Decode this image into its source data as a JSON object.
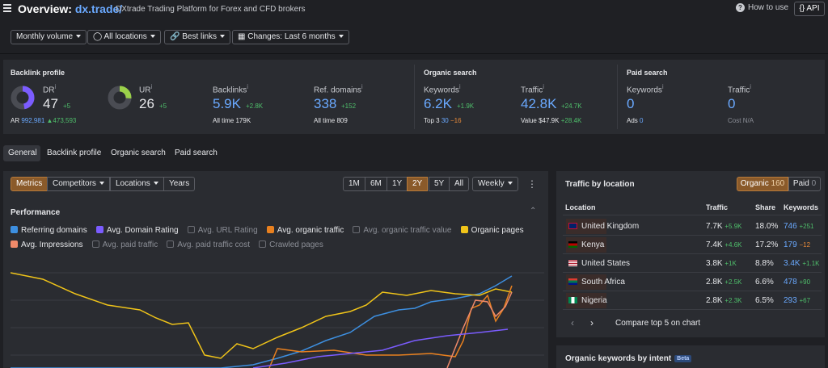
{
  "header": {
    "title_prefix": "Overview:",
    "domain": "dx.trade/",
    "subtitle": "DXtrade Trading Platform for Forex and CFD brokers",
    "how_to_use": "How to use",
    "api": "API"
  },
  "filters": [
    {
      "label": "Monthly volume"
    },
    {
      "label": "All locations",
      "icon": "globe-icon"
    },
    {
      "label": "Best links",
      "icon": "link-icon"
    },
    {
      "label": "Changes: Last 6 months",
      "icon": "calendar-icon"
    }
  ],
  "backlink_profile": {
    "heading": "Backlink profile",
    "dr": {
      "label": "DR",
      "value": "47",
      "delta": "+5",
      "donut_fill": 0.47,
      "color": "#7b5cff"
    },
    "ar": {
      "label": "AR",
      "value": "992,981",
      "delta": "▲473,593"
    },
    "ur": {
      "label": "UR",
      "value": "26",
      "delta": "+5",
      "donut_fill": 0.26,
      "color": "#9bd14a"
    },
    "backlinks": {
      "label": "Backlinks",
      "value": "5.9K",
      "delta": "+2.8K",
      "sub_label": "All time",
      "sub_value": "179K"
    },
    "ref_domains": {
      "label": "Ref. domains",
      "value": "338",
      "delta": "+152",
      "sub_label": "All time",
      "sub_value": "809"
    }
  },
  "organic_search": {
    "heading": "Organic search",
    "keywords": {
      "label": "Keywords",
      "value": "6.2K",
      "delta": "+1.9K",
      "sub_label": "Top 3",
      "sub_value": "30",
      "sub_delta": "−16"
    },
    "traffic": {
      "label": "Traffic",
      "value": "42.8K",
      "delta": "+24.7K",
      "sub_label": "Value",
      "sub_value": "$47.9K",
      "sub_delta": "+28.4K"
    }
  },
  "paid_search": {
    "heading": "Paid search",
    "keywords": {
      "label": "Keywords",
      "value": "0",
      "sub_label": "Ads",
      "sub_value": "0"
    },
    "traffic": {
      "label": "Traffic",
      "value": "0",
      "sub_label": "Cost",
      "sub_value": "N/A"
    }
  },
  "tabs": [
    "General",
    "Backlink profile",
    "Organic search",
    "Paid search"
  ],
  "toolbar": {
    "metrics": "Metrics",
    "competitors": "Competitors",
    "locations": "Locations",
    "years": "Years",
    "ranges": [
      "1M",
      "6M",
      "1Y",
      "2Y",
      "5Y",
      "All"
    ],
    "selected_range": "2Y",
    "interval": "Weekly"
  },
  "performance": {
    "title": "Performance",
    "legend": [
      {
        "label": "Referring domains",
        "checked": true,
        "color": "#3d8fe0"
      },
      {
        "label": "Avg. Domain Rating",
        "checked": true,
        "color": "#7b5cff"
      },
      {
        "label": "Avg. URL Rating",
        "checked": false
      },
      {
        "label": "Avg. organic traffic",
        "checked": true,
        "color": "#e8801f"
      },
      {
        "label": "Avg. organic traffic value",
        "checked": false
      },
      {
        "label": "Organic pages",
        "checked": true,
        "color": "#f0c419"
      },
      {
        "label": "Avg. Impressions",
        "checked": true,
        "color": "#f08a6a"
      },
      {
        "label": "Avg. paid traffic",
        "checked": false
      },
      {
        "label": "Avg. paid traffic cost",
        "checked": false
      },
      {
        "label": "Crawled pages",
        "checked": false
      }
    ]
  },
  "traffic_by_location": {
    "title": "Traffic by location",
    "organic_label": "Organic",
    "organic_count": "160",
    "paid_label": "Paid",
    "paid_count": "0",
    "columns": [
      "Location",
      "Traffic",
      "Share",
      "Keywords"
    ],
    "rows": [
      {
        "country": "United Kingdom",
        "flag": "uk-flag-icon",
        "traffic": "7.7K",
        "delta": "+5.9K",
        "share": "18.0%",
        "keywords": "746",
        "kw_delta": "+251",
        "kw_delta_color": "#4fbf6b"
      },
      {
        "country": "Kenya",
        "flag": "kenya-flag-icon",
        "traffic": "7.4K",
        "delta": "+4.6K",
        "share": "17.2%",
        "keywords": "179",
        "kw_delta": "−12",
        "kw_delta_color": "#e88a3a"
      },
      {
        "country": "United States",
        "flag": "us-flag-icon",
        "traffic": "3.8K",
        "delta": "+1K",
        "share": "8.8%",
        "keywords": "3.4K",
        "kw_delta": "+1.1K",
        "kw_delta_color": "#4fbf6b"
      },
      {
        "country": "South Africa",
        "flag": "south-africa-flag-icon",
        "traffic": "2.8K",
        "delta": "+2.5K",
        "share": "6.6%",
        "keywords": "478",
        "kw_delta": "+90",
        "kw_delta_color": "#4fbf6b"
      },
      {
        "country": "Nigeria",
        "flag": "nigeria-flag-icon",
        "traffic": "2.8K",
        "delta": "+2.3K",
        "share": "6.5%",
        "keywords": "293",
        "kw_delta": "+67",
        "kw_delta_color": "#4fbf6b"
      }
    ],
    "compare": "Compare top 5 on chart"
  },
  "organic_keywords_intent": {
    "title": "Organic keywords by intent",
    "badge": "Beta"
  }
}
